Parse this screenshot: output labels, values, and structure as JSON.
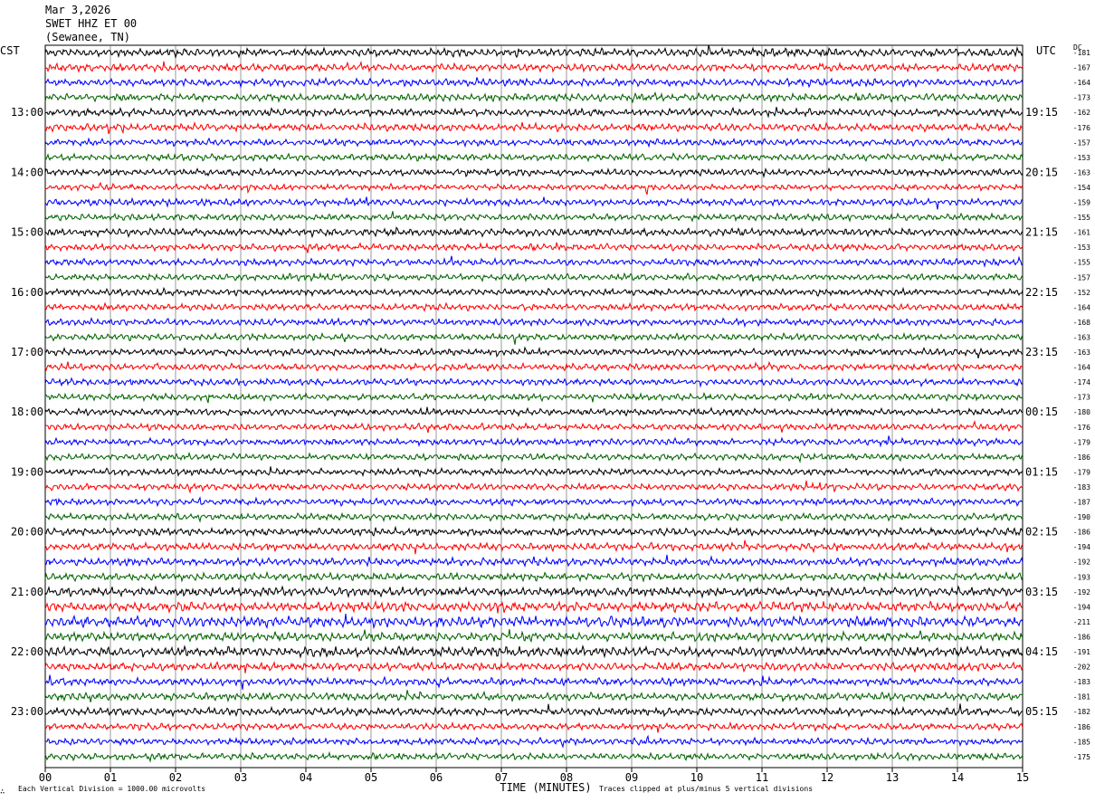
{
  "header": {
    "date": "Mar 3,2026",
    "station": "SWET HHZ ET 00",
    "location": "(Sewanee, TN)"
  },
  "left_zone": "CST",
  "right_zone": "UTC",
  "dc_label": "DC",
  "footer": {
    "note_left": "Each Vertical Division = 1000.00 microvolts",
    "note_right": "Traces clipped at plus/minus 5 vertical divisions",
    "glyph": "∴"
  },
  "chart_data": {
    "type": "line",
    "title": "",
    "xlabel": "TIME (MINUTES)",
    "ylabel": "",
    "xlim": [
      0,
      15
    ],
    "x_ticks": [
      "00",
      "01",
      "02",
      "03",
      "04",
      "05",
      "06",
      "07",
      "08",
      "09",
      "10",
      "11",
      "12",
      "13",
      "14",
      "15"
    ],
    "grid": "vertical lines at each minute",
    "row_colors": [
      "#000000",
      "#ff0000",
      "#0000ff",
      "#006400"
    ],
    "left_hour_labels": [
      "13:00",
      "14:00",
      "15:00",
      "16:00",
      "17:00",
      "18:00",
      "19:00",
      "20:00",
      "21:00",
      "22:00",
      "23:00"
    ],
    "right_hour_labels": [
      "19:15",
      "20:15",
      "21:15",
      "22:15",
      "23:15",
      "00:15",
      "01:15",
      "02:15",
      "03:15",
      "04:15",
      "05:15"
    ],
    "dc_offsets": [
      -181,
      -167,
      -164,
      -173,
      -162,
      -176,
      -157,
      -153,
      -163,
      -154,
      -159,
      -155,
      -161,
      -153,
      -155,
      -157,
      -152,
      -164,
      -168,
      -163,
      -163,
      -164,
      -174,
      -173,
      -180,
      -176,
      -179,
      -186,
      -179,
      -183,
      -187,
      -190,
      -186,
      -194,
      -192,
      -193,
      -192,
      -194,
      -211,
      -186,
      -191,
      -202,
      -183,
      -181,
      -182,
      -186,
      -185,
      -175
    ],
    "amplitude_scale": [
      1.1,
      1.0,
      1.0,
      1.0,
      1.0,
      1.0,
      0.9,
      0.9,
      0.9,
      0.8,
      0.9,
      0.9,
      1.0,
      0.9,
      0.9,
      0.9,
      0.9,
      0.9,
      0.9,
      0.9,
      0.9,
      0.9,
      0.9,
      0.9,
      0.9,
      0.9,
      0.9,
      0.9,
      0.9,
      0.9,
      0.9,
      0.9,
      1.0,
      1.0,
      1.0,
      1.0,
      1.2,
      1.3,
      1.4,
      1.2,
      1.3,
      1.1,
      1.0,
      1.0,
      1.0,
      0.9,
      0.9,
      0.9
    ]
  }
}
